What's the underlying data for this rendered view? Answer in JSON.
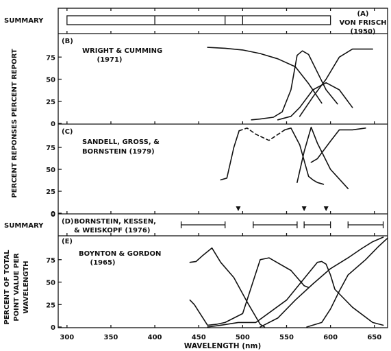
{
  "chart_data": {
    "type": "line",
    "xlabel": "WAVELENGTH (nm)",
    "xlim": [
      290,
      665
    ],
    "x_ticks": [
      300,
      350,
      400,
      450,
      500,
      550,
      600,
      650
    ],
    "y_ticks": [
      0,
      25,
      50,
      75
    ],
    "ylabel_upper": "PERCENT REPONSES PERCENT REPORT",
    "ylabel_lower": [
      "PERCENT OF TOTAL",
      "POINT VALUE PER",
      "WAVELENGTH"
    ],
    "summary_label": "SUMMARY",
    "panels": [
      {
        "letter": "(A)",
        "title": [
          "VON FRISCH",
          "(1950)"
        ],
        "kind": "summary-bar",
        "boundaries": [
          300,
          400,
          480,
          500,
          600
        ]
      },
      {
        "letter": "(B)",
        "title": [
          "WRIGHT & CUMMING",
          "(1971)"
        ],
        "kind": "curves",
        "series": [
          {
            "x": [
              460,
              480,
              500,
              520,
              540,
              560,
              575,
              590
            ],
            "y": [
              86,
              85,
              83,
              79,
              73,
              64,
              45,
              23
            ]
          },
          {
            "x": [
              510,
              520,
              535,
              545,
              555,
              562,
              568,
              575,
              585,
              595,
              608
            ],
            "y": [
              4,
              5,
              7,
              13,
              38,
              77,
              82,
              78,
              58,
              38,
              22
            ]
          },
          {
            "x": [
              540,
              555,
              565,
              580,
              595,
              610,
              625
            ],
            "y": [
              4,
              8,
              18,
              38,
              46,
              38,
              18
            ]
          },
          {
            "x": [
              565,
              580,
              595,
              610,
              625,
              640,
              648
            ],
            "y": [
              8,
              30,
              50,
              75,
              84,
              84,
              84
            ]
          }
        ]
      },
      {
        "letter": "(C)",
        "title": [
          "SANDELL, GROSS, &",
          "BORNSTEIN (1979)"
        ],
        "kind": "curves",
        "series": [
          {
            "x": [
              475,
              482,
              490,
              496
            ],
            "y": [
              38,
              40,
              75,
              94
            ]
          },
          {
            "x": [
              496,
              505,
              515,
              530,
              548
            ],
            "y": [
              94,
              97,
              90,
              83,
              95
            ]
          },
          {
            "x": [
              548,
              555,
              565,
              575,
              580,
              585,
              592
            ],
            "y": [
              95,
              97,
              78,
              42,
              38,
              35,
              33
            ]
          },
          {
            "x": [
              562,
              570,
              578,
              585,
              600,
              620
            ],
            "y": [
              35,
              70,
              98,
              80,
              50,
              28
            ]
          },
          {
            "x": [
              578,
              585,
              600,
              610,
              625,
              640
            ],
            "y": [
              58,
              62,
              82,
              95,
              95,
              97
            ]
          }
        ],
        "dashed_series": [
          1
        ],
        "markers_x": [
          495,
          570,
          595
        ]
      },
      {
        "letter": "(D)",
        "title": [
          "BORNSTEIN, KESSEN,",
          "& WEISKOPF (1976)"
        ],
        "kind": "summary-ranges",
        "ranges": [
          [
            430,
            480
          ],
          [
            512,
            562
          ],
          [
            570,
            600
          ],
          [
            620,
            660
          ]
        ]
      },
      {
        "letter": "(E)",
        "title": [
          "BOYNTON & GORDON",
          "(1965)"
        ],
        "kind": "curves",
        "series": [
          {
            "x": [
              440,
              447,
              455,
              465,
              470,
              475,
              490,
              505,
              520,
              525
            ],
            "y": [
              72,
              73,
              80,
              88,
              80,
              72,
              55,
              28,
              3,
              0
            ]
          },
          {
            "x": [
              440,
              445,
              460,
              470,
              480,
              500,
              515,
              520,
              530,
              555,
              570,
              575
            ],
            "y": [
              30,
              25,
              2,
              3,
              5,
              15,
              60,
              75,
              77,
              63,
              46,
              44
            ]
          },
          {
            "x": [
              460,
              475,
              495,
              515,
              550,
              575,
              585,
              590,
              595,
              600,
              605,
              625,
              648,
              660
            ],
            "y": [
              0,
              2,
              5,
              5,
              30,
              60,
              72,
              73,
              70,
              58,
              42,
              22,
              5,
              2
            ]
          },
          {
            "x": [
              520,
              540,
              560,
              580,
              600,
              620,
              635,
              648,
              660
            ],
            "y": [
              0,
              10,
              30,
              48,
              65,
              77,
              87,
              95,
              100
            ]
          },
          {
            "x": [
              573,
              590,
              600,
              610,
              620,
              640,
              655,
              665
            ],
            "y": [
              0,
              5,
              20,
              40,
              58,
              75,
              90,
              99
            ]
          }
        ]
      }
    ]
  }
}
